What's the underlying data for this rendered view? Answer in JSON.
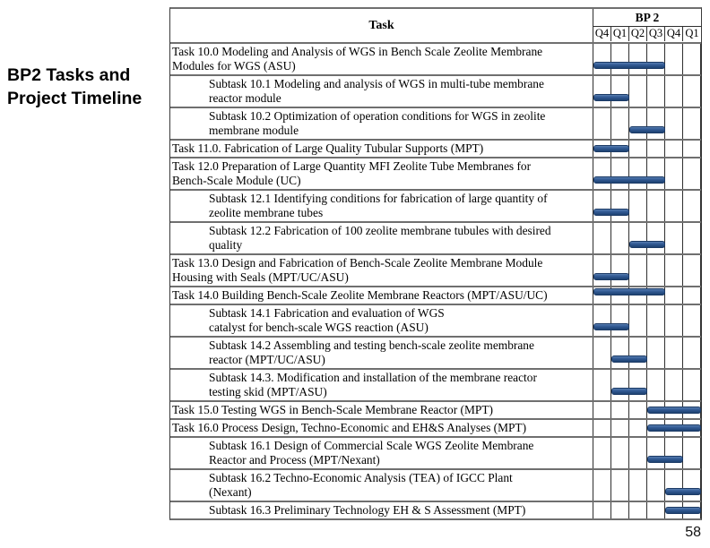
{
  "slide": {
    "title": "BP2 Tasks and\nProject Timeline",
    "page_number": "58"
  },
  "colors": {
    "bar_fill": "#2a5187",
    "bar_border": "#1b3a66",
    "grid_vertical": "#2f2f2f",
    "grid_horizontal": "#6f6f6f",
    "text": "#000000",
    "background": "#ffffff"
  },
  "chart_data": {
    "type": "table",
    "subtype": "gantt-timeline",
    "title": "BP2 Tasks and Project Timeline",
    "columns": {
      "task": "Task",
      "period": "BP 2",
      "quarters": [
        "Q4",
        "Q1",
        "Q2",
        "Q3",
        "Q4",
        "Q1"
      ]
    },
    "legend_position": "none",
    "grid": true,
    "tasks": [
      {
        "label": "Task 10.0 Modeling and Analysis of WGS in Bench Scale Zeolite Membrane\nModules for WGS (ASU)",
        "level": "task",
        "lines": 2,
        "bar_start_quarter": 1,
        "bar_end_quarter": 4,
        "bar_align": "bottom"
      },
      {
        "label": "Subtask 10.1 Modeling and analysis of WGS in multi-tube membrane\nreactor module",
        "level": "subtask",
        "lines": 2,
        "bar_start_quarter": 1,
        "bar_end_quarter": 2,
        "bar_align": "bottom"
      },
      {
        "label": "Subtask 10.2 Optimization of operation conditions for WGS in zeolite\nmembrane module",
        "level": "subtask",
        "lines": 2,
        "bar_start_quarter": 3,
        "bar_end_quarter": 4,
        "bar_align": "bottom"
      },
      {
        "label": "Task 11.0. Fabrication of Large Quality Tubular Supports (MPT)",
        "level": "task",
        "lines": 1,
        "bar_start_quarter": 1,
        "bar_end_quarter": 2,
        "bar_align": "center"
      },
      {
        "label": "Task 12.0 Preparation of Large Quantity MFI Zeolite Tube Membranes for\nBench-Scale Module (UC)",
        "level": "task",
        "lines": 2,
        "bar_start_quarter": 1,
        "bar_end_quarter": 4,
        "bar_align": "bottom"
      },
      {
        "label": "Subtask 12.1 Identifying conditions for fabrication of large quantity of\nzeolite membrane tubes",
        "level": "subtask",
        "lines": 2,
        "bar_start_quarter": 1,
        "bar_end_quarter": 2,
        "bar_align": "bottom"
      },
      {
        "label": "Subtask 12.2 Fabrication of 100 zeolite membrane tubules with desired\nquality",
        "level": "subtask",
        "lines": 2,
        "bar_start_quarter": 3,
        "bar_end_quarter": 4,
        "bar_align": "bottom"
      },
      {
        "label": "Task 13.0 Design and Fabrication of Bench-Scale Zeolite Membrane Module\nHousing with Seals (MPT/UC/ASU)",
        "level": "task",
        "lines": 2,
        "bar_start_quarter": 1,
        "bar_end_quarter": 2,
        "bar_align": "bottom"
      },
      {
        "label": "Task 14.0 Building Bench-Scale Zeolite Membrane Reactors (MPT/ASU/UC)",
        "level": "task",
        "lines": 1,
        "bar_start_quarter": 1,
        "bar_end_quarter": 4,
        "bar_align": "top"
      },
      {
        "label": "Subtask 14.1 Fabrication and evaluation of WGS\ncatalyst for bench-scale WGS reaction (ASU)",
        "level": "subtask",
        "lines": 2,
        "bar_start_quarter": 1,
        "bar_end_quarter": 2,
        "bar_align": "bottom"
      },
      {
        "label": "Subtask 14.2 Assembling and testing bench-scale zeolite membrane\nreactor (MPT/UC/ASU)",
        "level": "subtask",
        "lines": 2,
        "bar_start_quarter": 2,
        "bar_end_quarter": 3,
        "bar_align": "bottom"
      },
      {
        "label": "Subtask 14.3. Modification and installation of the membrane reactor\ntesting skid (MPT/ASU)",
        "level": "subtask",
        "lines": 2,
        "bar_start_quarter": 2,
        "bar_end_quarter": 3,
        "bar_align": "bottom"
      },
      {
        "label": "Task 15.0 Testing WGS in Bench-Scale Membrane Reactor (MPT)",
        "level": "task",
        "lines": 1,
        "bar_start_quarter": 4,
        "bar_end_quarter": 6,
        "bar_align": "center"
      },
      {
        "label": "Task 16.0 Process Design, Techno-Economic and EH&S Analyses (MPT)",
        "level": "task",
        "lines": 1,
        "bar_start_quarter": 4,
        "bar_end_quarter": 6,
        "bar_align": "center"
      },
      {
        "label": "Subtask 16.1 Design of Commercial Scale WGS Zeolite Membrane\nReactor and Process (MPT/Nexant)",
        "level": "subtask",
        "lines": 2,
        "bar_start_quarter": 4,
        "bar_end_quarter": 5,
        "bar_align": "bottom"
      },
      {
        "label": "Subtask 16.2 Techno-Economic Analysis (TEA) of IGCC Plant\n(Nexant)",
        "level": "subtask",
        "lines": 2,
        "bar_start_quarter": 5,
        "bar_end_quarter": 6,
        "bar_align": "bottom"
      },
      {
        "label": "Subtask 16.3 Preliminary Technology EH & S Assessment (MPT)",
        "level": "subtask",
        "lines": 1,
        "bar_start_quarter": 5,
        "bar_end_quarter": 6,
        "bar_align": "center"
      }
    ]
  }
}
